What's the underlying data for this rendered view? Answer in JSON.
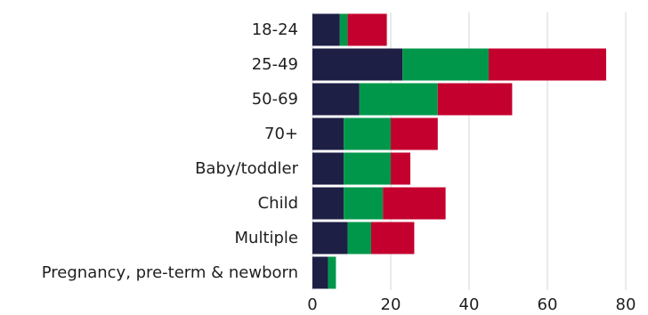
{
  "chart_data": {
    "type": "bar",
    "orientation": "horizontal",
    "stacked": true,
    "categories": [
      "18-24",
      "25-49",
      "50-69",
      "70+",
      "Baby/toddler",
      "Child",
      "Multiple",
      "Pregnancy, pre-term & newborn"
    ],
    "series": [
      {
        "color": "#1e1f45",
        "values": [
          7,
          23,
          12,
          8,
          8,
          8,
          9,
          4
        ]
      },
      {
        "color": "#00974a",
        "values": [
          2,
          22,
          20,
          12,
          12,
          10,
          6,
          2
        ]
      },
      {
        "color": "#c4002f",
        "values": [
          10,
          30,
          19,
          12,
          5,
          16,
          11,
          0
        ]
      }
    ],
    "xlim": [
      0,
      80
    ],
    "xticks": [
      0,
      20,
      40,
      60,
      80
    ],
    "xtick_labels": [
      "0",
      "20",
      "40",
      "60",
      "80"
    ],
    "grid": true,
    "legend": "none",
    "title": "",
    "xlabel": "",
    "ylabel": ""
  }
}
